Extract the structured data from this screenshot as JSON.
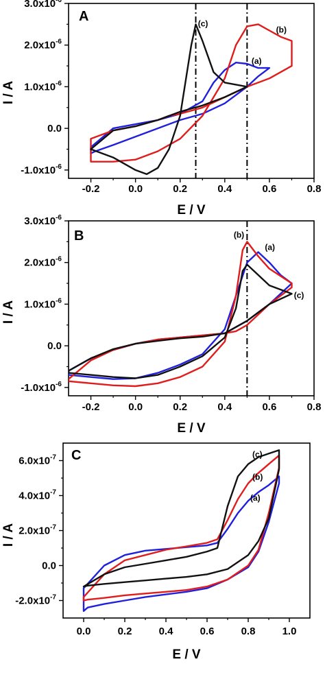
{
  "chart_data": [
    {
      "type": "line",
      "panel_label": "A",
      "xlabel": "E / V",
      "ylabel": "I / A",
      "xlim": [
        -0.3,
        0.8
      ],
      "ylim": [
        -1.2e-06,
        3e-06
      ],
      "x_ticks": [
        -0.2,
        0.0,
        0.2,
        0.4,
        0.6,
        0.8
      ],
      "x_tick_labels": [
        "-0.2",
        "0.0",
        "0.2",
        "0.4",
        "0.6",
        "0.8"
      ],
      "y_ticks": [
        -1e-06,
        0.0,
        1e-06,
        2e-06,
        3e-06
      ],
      "y_tick_labels": [
        {
          "mantissa": "-1.0x10",
          "exponent": "-6"
        },
        {
          "mantissa": "0.0",
          "exponent": ""
        },
        {
          "mantissa": "1.0x10",
          "exponent": "-6"
        },
        {
          "mantissa": "2.0x10",
          "exponent": "-6"
        },
        {
          "mantissa": "3.0x10",
          "exponent": "-6"
        }
      ],
      "vlines": [
        0.27,
        0.5
      ],
      "series": [
        {
          "name": "(a)",
          "color": "#1f1fdc",
          "label_at": [
            0.52,
            1.55e-06
          ],
          "x": [
            -0.2,
            -0.1,
            0.0,
            0.1,
            0.2,
            0.3,
            0.35,
            0.4,
            0.45,
            0.5,
            0.55,
            0.6,
            0.55,
            0.5,
            0.4,
            0.3,
            0.2,
            0.1,
            0.0,
            -0.1,
            -0.18,
            -0.2,
            -0.2
          ],
          "y": [
            -4.5e-07,
            0.0,
            1e-07,
            2e-07,
            3.5e-07,
            6.5e-07,
            1.1e-06,
            1.4e-06,
            1.58e-06,
            1.55e-06,
            1.45e-06,
            1.45e-06,
            1.25e-06,
            1e-06,
            6e-07,
            3.5e-07,
            2e-07,
            0.0,
            -2e-07,
            -4e-07,
            -5.5e-07,
            -6e-07,
            -4.5e-07
          ]
        },
        {
          "name": "(b)",
          "color": "#e01c1c",
          "label_at": [
            0.63,
            2.3e-06
          ],
          "x": [
            -0.2,
            -0.1,
            0.0,
            0.1,
            0.2,
            0.3,
            0.4,
            0.45,
            0.5,
            0.55,
            0.6,
            0.65,
            0.7,
            0.7,
            0.6,
            0.5,
            0.4,
            0.3,
            0.2,
            0.15,
            0.1,
            0.0,
            -0.1,
            -0.2,
            -0.2
          ],
          "y": [
            -8e-07,
            -8e-07,
            -7.5e-07,
            -5.5e-07,
            -2.5e-07,
            3e-07,
            1.2e-06,
            2e-06,
            2.45e-06,
            2.5e-06,
            2.35e-06,
            2.2e-06,
            2.1e-06,
            1.5e-06,
            1.2e-06,
            1e-06,
            7.5e-07,
            5e-07,
            3.5e-07,
            3e-07,
            2e-07,
            5e-08,
            -5e-08,
            -2.5e-07,
            -8e-07
          ]
        },
        {
          "name": "(c)",
          "color": "#111111",
          "label_at": [
            0.28,
            2.45e-06
          ],
          "x": [
            -0.2,
            -0.1,
            0.0,
            0.05,
            0.1,
            0.15,
            0.2,
            0.25,
            0.27,
            0.3,
            0.35,
            0.4,
            0.5,
            0.4,
            0.3,
            0.2,
            0.15,
            0.1,
            0.0,
            -0.1,
            -0.2
          ],
          "y": [
            -5e-07,
            -7e-07,
            -1e-06,
            -1.1e-06,
            -9.5e-07,
            -5e-07,
            3e-07,
            2e-06,
            2.5e-06,
            2.1e-06,
            1.35e-06,
            1.1e-06,
            1e-06,
            7.5e-07,
            5.5e-07,
            4e-07,
            3e-07,
            2e-07,
            5e-08,
            -5e-08,
            -5e-07
          ]
        }
      ]
    },
    {
      "type": "line",
      "panel_label": "B",
      "xlabel": "E / V",
      "ylabel": "I / A",
      "xlim": [
        -0.3,
        0.8
      ],
      "ylim": [
        -1.2e-06,
        3e-06
      ],
      "x_ticks": [
        -0.2,
        0.0,
        0.2,
        0.4,
        0.6,
        0.8
      ],
      "x_tick_labels": [
        "-0.2",
        "0.0",
        "0.2",
        "0.4",
        "0.6",
        "0.8"
      ],
      "y_ticks": [
        -1e-06,
        0.0,
        1e-06,
        2e-06,
        3e-06
      ],
      "y_tick_labels": [
        {
          "mantissa": "-1.0x10",
          "exponent": "-6"
        },
        {
          "mantissa": "0.0",
          "exponent": ""
        },
        {
          "mantissa": "1.0x10",
          "exponent": "-6"
        },
        {
          "mantissa": "2.0x10",
          "exponent": "-6"
        },
        {
          "mantissa": "3.0x10",
          "exponent": "-6"
        }
      ],
      "vlines": [
        0.5
      ],
      "series": [
        {
          "name": "(a)",
          "color": "#1f1fdc",
          "label_at": [
            0.58,
            2.3e-06
          ],
          "x": [
            -0.3,
            -0.2,
            -0.1,
            0.0,
            0.1,
            0.2,
            0.3,
            0.4,
            0.45,
            0.5,
            0.55,
            0.6,
            0.65,
            0.7,
            0.6,
            0.5,
            0.4,
            0.3,
            0.2,
            0.1,
            0.0,
            -0.1,
            -0.2,
            -0.3
          ],
          "y": [
            -7e-07,
            -7.5e-07,
            -8e-07,
            -7.8e-07,
            -6.5e-07,
            -4.5e-07,
            -2e-07,
            4e-07,
            1.2e-06,
            2e-06,
            2.25e-06,
            2e-06,
            1.7e-06,
            1.5e-06,
            1e-06,
            6e-07,
            3e-07,
            2.5e-07,
            2e-07,
            1.5e-07,
            5e-08,
            -1e-07,
            -3e-07,
            -6e-07
          ]
        },
        {
          "name": "(b)",
          "color": "#e01c1c",
          "label_at": [
            0.44,
            2.6e-06
          ],
          "x": [
            -0.3,
            -0.2,
            -0.1,
            0.0,
            0.1,
            0.2,
            0.3,
            0.4,
            0.45,
            0.48,
            0.5,
            0.55,
            0.6,
            0.7,
            0.7,
            0.6,
            0.5,
            0.45,
            0.4,
            0.3,
            0.2,
            0.1,
            0.0,
            -0.1,
            -0.2,
            -0.3
          ],
          "y": [
            -8.5e-07,
            -9e-07,
            -9.5e-07,
            -9.7e-07,
            -9e-07,
            -7.5e-07,
            -5e-07,
            1e-07,
            1.2e-06,
            2.3e-06,
            2.5e-06,
            2.15e-06,
            1.85e-06,
            1.5e-06,
            1.4e-06,
            1e-06,
            5e-07,
            3.5e-07,
            3e-07,
            2.5e-07,
            2e-07,
            1.5e-07,
            5e-08,
            -1e-07,
            -3.5e-07,
            -8e-07
          ]
        },
        {
          "name": "(c)",
          "color": "#111111",
          "label_at": [
            0.71,
            1.15e-06
          ],
          "x": [
            -0.3,
            -0.2,
            -0.1,
            0.0,
            0.1,
            0.2,
            0.3,
            0.4,
            0.45,
            0.48,
            0.5,
            0.55,
            0.6,
            0.7,
            0.6,
            0.5,
            0.4,
            0.3,
            0.2,
            0.1,
            0.0,
            -0.1,
            -0.2,
            -0.3
          ],
          "y": [
            -6.5e-07,
            -7e-07,
            -7.5e-07,
            -7.8e-07,
            -7e-07,
            -5e-07,
            -2.5e-07,
            2e-07,
            9e-07,
            1.8e-06,
            1.95e-06,
            1.7e-06,
            1.45e-06,
            1.25e-06,
            1e-06,
            6e-07,
            3e-07,
            2.2e-07,
            1.8e-07,
            1.2e-07,
            5e-08,
            -8e-08,
            -3e-07,
            -6e-07
          ]
        }
      ]
    },
    {
      "type": "line",
      "panel_label": "C",
      "xlabel": "E / V",
      "ylabel": "I / A",
      "xlim": [
        -0.1,
        1.1
      ],
      "ylim": [
        -3e-07,
        7e-07
      ],
      "x_ticks": [
        0.0,
        0.2,
        0.4,
        0.6,
        0.8,
        1.0
      ],
      "x_tick_labels": [
        "0.0",
        "0.2",
        "0.4",
        "0.6",
        "0.8",
        "1.0"
      ],
      "y_ticks": [
        -2e-07,
        0.0,
        2e-07,
        4e-07,
        6e-07
      ],
      "y_tick_labels": [
        {
          "mantissa": "-2.0x10",
          "exponent": "-7"
        },
        {
          "mantissa": "0.0",
          "exponent": ""
        },
        {
          "mantissa": "2.0x10",
          "exponent": "-7"
        },
        {
          "mantissa": "4.0x10",
          "exponent": "-7"
        },
        {
          "mantissa": "6.0x10",
          "exponent": "-7"
        }
      ],
      "vlines": [],
      "series": [
        {
          "name": "(a)",
          "color": "#1f1fdc",
          "label_at": [
            0.81,
            3.7e-07
          ],
          "x": [
            0.0,
            0.1,
            0.2,
            0.3,
            0.4,
            0.5,
            0.6,
            0.65,
            0.7,
            0.75,
            0.8,
            0.85,
            0.9,
            0.95,
            0.95,
            0.9,
            0.85,
            0.8,
            0.7,
            0.6,
            0.5,
            0.4,
            0.3,
            0.2,
            0.1,
            0.02,
            0.0
          ],
          "y": [
            -1.3e-07,
            0.0,
            6e-08,
            8.5e-08,
            9.5e-08,
            1.05e-07,
            1.15e-07,
            1.3e-07,
            2.1e-07,
            3e-07,
            3.7e-07,
            4.2e-07,
            4.6e-07,
            5.1e-07,
            4.7e-07,
            2.5e-07,
            8e-08,
            -1e-08,
            -8e-08,
            -1.3e-07,
            -1.5e-07,
            -1.65e-07,
            -1.8e-07,
            -2e-07,
            -2.2e-07,
            -2.4e-07,
            -2.6e-07
          ]
        },
        {
          "name": "(b)",
          "color": "#e01c1c",
          "label_at": [
            0.82,
            4.9e-07
          ],
          "x": [
            0.0,
            0.1,
            0.2,
            0.3,
            0.4,
            0.5,
            0.6,
            0.65,
            0.7,
            0.75,
            0.8,
            0.85,
            0.9,
            0.95,
            0.95,
            0.9,
            0.85,
            0.8,
            0.7,
            0.6,
            0.5,
            0.4,
            0.3,
            0.2,
            0.1,
            0.02,
            0.0
          ],
          "y": [
            -1.8e-07,
            -5e-08,
            3e-08,
            6e-08,
            9e-08,
            1.1e-07,
            1.3e-07,
            1.5e-07,
            2.6e-07,
            3.8e-07,
            4.7e-07,
            5.3e-07,
            5.8e-07,
            6.3e-07,
            5.6e-07,
            3e-07,
            9e-08,
            0.0,
            -8e-08,
            -1.2e-07,
            -1.4e-07,
            -1.5e-07,
            -1.6e-07,
            -1.7e-07,
            -1.85e-07,
            -1.95e-07,
            -2e-07
          ]
        },
        {
          "name": "(c)",
          "color": "#111111",
          "label_at": [
            0.82,
            6.2e-07
          ],
          "x": [
            0.0,
            0.1,
            0.2,
            0.3,
            0.4,
            0.5,
            0.6,
            0.65,
            0.7,
            0.75,
            0.8,
            0.85,
            0.9,
            0.95,
            0.95,
            0.9,
            0.85,
            0.8,
            0.7,
            0.6,
            0.5,
            0.4,
            0.3,
            0.2,
            0.1,
            0.02,
            0.0
          ],
          "y": [
            -1.2e-07,
            -5e-08,
            -1e-08,
            1e-08,
            3e-08,
            5e-08,
            8e-08,
            1e-07,
            3.4e-07,
            5.1e-07,
            5.8e-07,
            6.2e-07,
            6.4e-07,
            6.6e-07,
            5.5e-07,
            2.7e-07,
            1.4e-07,
            6e-08,
            -2e-08,
            -5e-08,
            -6.5e-08,
            -7.5e-08,
            -8.5e-08,
            -9.5e-08,
            -1.05e-07,
            -1.15e-07,
            -1.2e-07
          ]
        }
      ]
    }
  ]
}
